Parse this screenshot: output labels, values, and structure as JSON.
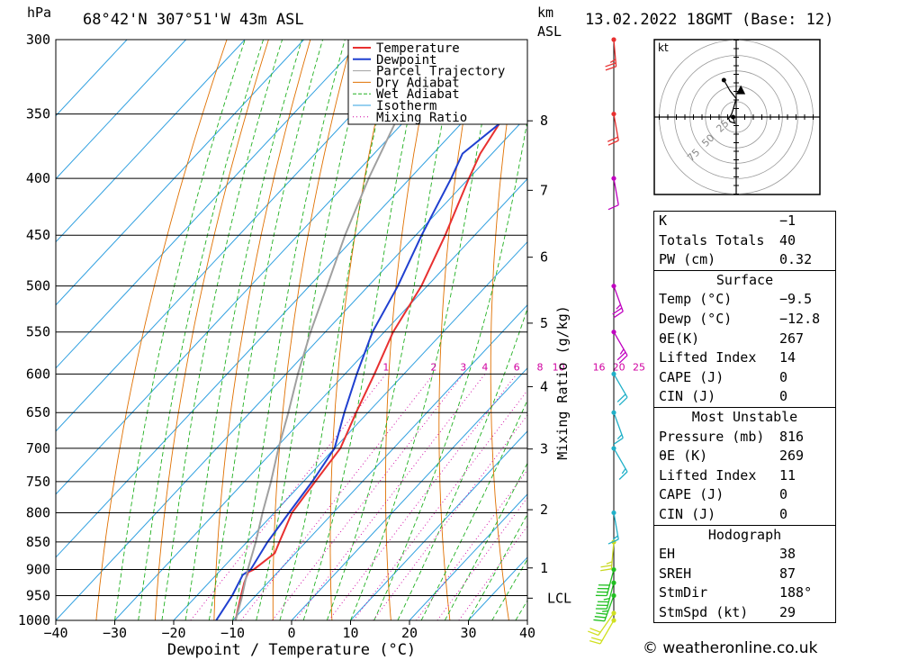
{
  "header": {
    "hpa_label": "hPa",
    "location": "68°42'N  307°51'W  43m  ASL",
    "km_label": "km",
    "asl_label": "ASL",
    "datetime": "13.02.2022  18GMT  (Base: 12)"
  },
  "chart_data": {
    "type": "line",
    "title": "",
    "xlabel": "Dewpoint / Temperature (°C)",
    "ylabel": "hPa",
    "y2label": "Mixing Ratio (g/kg)",
    "xlim": [
      -40,
      40
    ],
    "ylim": [
      1000,
      300
    ],
    "pressure_levels": [
      300,
      350,
      400,
      450,
      500,
      550,
      600,
      650,
      700,
      750,
      800,
      850,
      900,
      950,
      1000
    ],
    "x_ticks": [
      -40,
      -30,
      -20,
      -10,
      0,
      10,
      20,
      30,
      40
    ],
    "x_tick_labels": [
      "−40",
      "−30",
      "−20",
      "−10",
      "0",
      "10",
      "20",
      "30",
      "40"
    ],
    "km_ticks": [
      {
        "km": 1,
        "p": 897
      },
      {
        "km": 2,
        "p": 795
      },
      {
        "km": 3,
        "p": 701
      },
      {
        "km": 4,
        "p": 616
      },
      {
        "km": 5,
        "p": 540
      },
      {
        "km": 6,
        "p": 471
      },
      {
        "km": 7,
        "p": 410
      },
      {
        "km": 8,
        "p": 355
      }
    ],
    "lcl": {
      "label": "LCL",
      "p": 955
    },
    "mixing_ratios": [
      1,
      2,
      3,
      4,
      6,
      8,
      10,
      16,
      20,
      25
    ],
    "legend": {
      "placement": "top",
      "entries": [
        {
          "name": "Temperature",
          "color": "#e83030",
          "style": "solid"
        },
        {
          "name": "Dewpoint",
          "color": "#2040d0",
          "style": "solid"
        },
        {
          "name": "Parcel Trajectory",
          "color": "#a0a0a0",
          "style": "solid"
        },
        {
          "name": "Dry Adiabat",
          "color": "#e07000",
          "style": "solid"
        },
        {
          "name": "Wet Adiabat",
          "color": "#20b020",
          "style": "dashed"
        },
        {
          "name": "Isotherm",
          "color": "#30a0e0",
          "style": "solid"
        },
        {
          "name": "Mixing Ratio",
          "color": "#d000a0",
          "style": "dotted"
        }
      ]
    },
    "series": [
      {
        "name": "Temperature",
        "color": "#e83030",
        "points": [
          [
            1000,
            -9.5
          ],
          [
            975,
            -11
          ],
          [
            950,
            -12.5
          ],
          [
            925,
            -14
          ],
          [
            905,
            -15
          ],
          [
            900,
            -14.5
          ],
          [
            870,
            -13.5
          ],
          [
            850,
            -14.5
          ],
          [
            800,
            -17
          ],
          [
            750,
            -18
          ],
          [
            700,
            -19
          ],
          [
            650,
            -22
          ],
          [
            600,
            -25
          ],
          [
            550,
            -28.5
          ],
          [
            500,
            -31
          ],
          [
            450,
            -35
          ],
          [
            400,
            -40
          ],
          [
            380,
            -42
          ],
          [
            350,
            -44
          ],
          [
            330,
            -45.5
          ],
          [
            310,
            -44.5
          ],
          [
            300,
            -44.5
          ]
        ]
      },
      {
        "name": "Dewpoint",
        "color": "#2040d0",
        "points": [
          [
            1000,
            -12.8
          ],
          [
            950,
            -14
          ],
          [
            910,
            -15.5
          ],
          [
            900,
            -15
          ],
          [
            850,
            -16.5
          ],
          [
            800,
            -17.5
          ],
          [
            750,
            -18.5
          ],
          [
            700,
            -20
          ],
          [
            650,
            -24
          ],
          [
            600,
            -28
          ],
          [
            550,
            -32
          ],
          [
            500,
            -35
          ],
          [
            450,
            -39
          ],
          [
            400,
            -43
          ],
          [
            380,
            -45
          ],
          [
            350,
            -43
          ],
          [
            335,
            -45
          ],
          [
            320,
            -48
          ],
          [
            310,
            -44.5
          ],
          [
            300,
            -47.5
          ]
        ]
      },
      {
        "name": "Parcel Trajectory",
        "color": "#a0a0a0",
        "points": [
          [
            1000,
            -9.5
          ],
          [
            955,
            -12
          ],
          [
            900,
            -15.5
          ],
          [
            850,
            -18.5
          ],
          [
            800,
            -22
          ],
          [
            750,
            -25.5
          ],
          [
            700,
            -29.5
          ],
          [
            650,
            -33.5
          ],
          [
            600,
            -38
          ],
          [
            550,
            -42.5
          ],
          [
            500,
            -47
          ],
          [
            450,
            -52
          ],
          [
            400,
            -57
          ],
          [
            350,
            -62
          ],
          [
            300,
            -68
          ]
        ]
      }
    ]
  },
  "wind_profile": {
    "color_stops": [
      {
        "p_from": 1000,
        "p_to": 850,
        "color": "#c8d820"
      },
      {
        "p_from": 960,
        "p_to": 900,
        "color": "#20c020"
      },
      {
        "p_from": 800,
        "p_to": 600,
        "color": "#20b0c8"
      },
      {
        "p_from": 600,
        "p_to": 400,
        "color": "#c000c0"
      },
      {
        "p_from": 400,
        "p_to": 300,
        "color": "#e83030"
      }
    ],
    "barbs": [
      {
        "p": 1000,
        "dir": 210,
        "kt": 20,
        "color": "#d0e020"
      },
      {
        "p": 985,
        "dir": 215,
        "kt": 20,
        "color": "#d0e020"
      },
      {
        "p": 950,
        "dir": 200,
        "kt": 35,
        "color": "#20c020"
      },
      {
        "p": 925,
        "dir": 195,
        "kt": 35,
        "color": "#20c020"
      },
      {
        "p": 900,
        "dir": 195,
        "kt": 40,
        "color": "#20c020"
      },
      {
        "p": 850,
        "dir": 185,
        "kt": 25,
        "color": "#c8d820"
      },
      {
        "p": 800,
        "dir": 170,
        "kt": 15,
        "color": "#20b0c8"
      },
      {
        "p": 700,
        "dir": 150,
        "kt": 15,
        "color": "#20b0c8"
      },
      {
        "p": 650,
        "dir": 160,
        "kt": 15,
        "color": "#20b0c8"
      },
      {
        "p": 600,
        "dir": 150,
        "kt": 20,
        "color": "#20b0c8"
      },
      {
        "p": 550,
        "dir": 150,
        "kt": 25,
        "color": "#c000c0"
      },
      {
        "p": 500,
        "dir": 160,
        "kt": 25,
        "color": "#c000c0"
      },
      {
        "p": 400,
        "dir": 170,
        "kt": 10,
        "color": "#c000c0"
      },
      {
        "p": 350,
        "dir": 170,
        "kt": 20,
        "color": "#e83030"
      },
      {
        "p": 300,
        "dir": 175,
        "kt": 25,
        "color": "#e83030"
      }
    ]
  },
  "hodograph": {
    "unit_label": "kt",
    "ring_labels": [
      "25",
      "50",
      "75"
    ],
    "points": [
      [
        -2,
        10
      ],
      [
        -1,
        6
      ],
      [
        -4,
        7
      ],
      [
        -5,
        9
      ],
      [
        -3,
        12
      ],
      [
        -2,
        15
      ],
      [
        0,
        22
      ],
      [
        -4,
        27
      ],
      [
        -8,
        34
      ]
    ],
    "storm_motion": [
      2,
      28
    ]
  },
  "indices": {
    "general": [
      {
        "label": "K",
        "value": "−1"
      },
      {
        "label": "Totals Totals",
        "value": "40"
      },
      {
        "label": "PW (cm)",
        "value": "0.32"
      }
    ],
    "surface_title": "Surface",
    "surface": [
      {
        "label": "Temp (°C)",
        "value": "−9.5"
      },
      {
        "label": "Dewp (°C)",
        "value": "−12.8"
      },
      {
        "label": "θE(K)",
        "value": "267"
      },
      {
        "label": "Lifted Index",
        "value": "14"
      },
      {
        "label": "CAPE (J)",
        "value": "0"
      },
      {
        "label": "CIN (J)",
        "value": "0"
      }
    ],
    "unstable_title": "Most Unstable",
    "unstable": [
      {
        "label": "Pressure (mb)",
        "value": "816"
      },
      {
        "label": "θE (K)",
        "value": "269"
      },
      {
        "label": "Lifted Index",
        "value": "11"
      },
      {
        "label": "CAPE (J)",
        "value": "0"
      },
      {
        "label": "CIN (J)",
        "value": "0"
      }
    ],
    "hodo_title": "Hodograph",
    "hodo": [
      {
        "label": "EH",
        "value": "38"
      },
      {
        "label": "SREH",
        "value": "87"
      },
      {
        "label": "StmDir",
        "value": "188°"
      },
      {
        "label": "StmSpd (kt)",
        "value": "29"
      }
    ]
  },
  "credit": "© weatheronline.co.uk"
}
